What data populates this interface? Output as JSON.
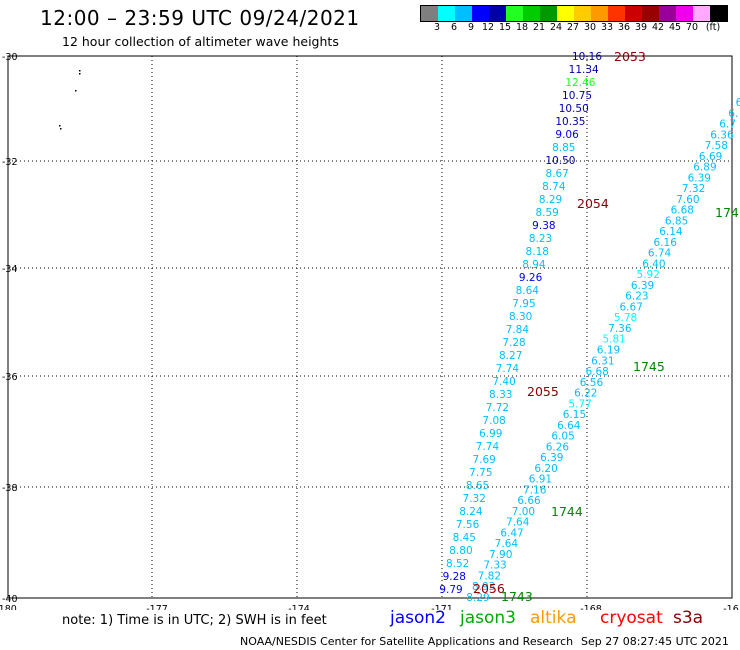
{
  "header": {
    "title": "12:00 – 23:59 UTC 09/24/2021",
    "subtitle": "12 hour collection of altimeter wave heights"
  },
  "colorbar": {
    "colors": [
      "#7f7f7f",
      "#00ffff",
      "#00bfff",
      "#0000ff",
      "#0000aa",
      "#22ff22",
      "#00cc00",
      "#009900",
      "#ffff00",
      "#ffcc00",
      "#ff9900",
      "#ff3300",
      "#cc0000",
      "#990000",
      "#990099",
      "#ee00ee",
      "#ffaaff",
      "#000000"
    ],
    "labels": [
      "3",
      "6",
      "9",
      "12",
      "15",
      "18",
      "21",
      "24",
      "27",
      "30",
      "33",
      "36",
      "39",
      "42",
      "45",
      "70",
      "(ft)"
    ]
  },
  "map": {
    "x_ticks": [
      "-180",
      "-177",
      "-174",
      "-171",
      "-168",
      "-16"
    ],
    "y_ticks": [
      "-30",
      "-32",
      "-34",
      "-36",
      "-38",
      "-40"
    ],
    "west_track": [
      {
        "v": "10.16",
        "c": "#0000aa"
      },
      {
        "v": "11.34",
        "c": "#0000aa"
      },
      {
        "v": "12.46",
        "c": "#22ff22"
      },
      {
        "v": "10.75",
        "c": "#0000aa"
      },
      {
        "v": "10.50",
        "c": "#0000aa"
      },
      {
        "v": "10.35",
        "c": "#0000aa"
      },
      {
        "v": "9.06",
        "c": "#0000ff"
      },
      {
        "v": "8.85",
        "c": "#00bfff"
      },
      {
        "v": "10.50",
        "c": "#0000aa"
      },
      {
        "v": "8.67",
        "c": "#00bfff"
      },
      {
        "v": "8.74",
        "c": "#00bfff"
      },
      {
        "v": "8.29",
        "c": "#00bfff"
      },
      {
        "v": "8.59",
        "c": "#00bfff"
      },
      {
        "v": "9.38",
        "c": "#0000ff"
      },
      {
        "v": "8.23",
        "c": "#00bfff"
      },
      {
        "v": "8.18",
        "c": "#00bfff"
      },
      {
        "v": "8.94",
        "c": "#00bfff"
      },
      {
        "v": "9.26",
        "c": "#0000ff"
      },
      {
        "v": "8.64",
        "c": "#00bfff"
      },
      {
        "v": "7.95",
        "c": "#00bfff"
      },
      {
        "v": "8.30",
        "c": "#00bfff"
      },
      {
        "v": "7.84",
        "c": "#00bfff"
      },
      {
        "v": "7.28",
        "c": "#00bfff"
      },
      {
        "v": "8.27",
        "c": "#00bfff"
      },
      {
        "v": "7.74",
        "c": "#00bfff"
      },
      {
        "v": "7.40",
        "c": "#00bfff"
      },
      {
        "v": "8.33",
        "c": "#00bfff"
      },
      {
        "v": "7.72",
        "c": "#00bfff"
      },
      {
        "v": "7.08",
        "c": "#00bfff"
      },
      {
        "v": "6.99",
        "c": "#00bfff"
      },
      {
        "v": "7.74",
        "c": "#00bfff"
      },
      {
        "v": "7.69",
        "c": "#00bfff"
      },
      {
        "v": "7.75",
        "c": "#00bfff"
      },
      {
        "v": "8.65",
        "c": "#00bfff"
      },
      {
        "v": "7.32",
        "c": "#00bfff"
      },
      {
        "v": "8.24",
        "c": "#00bfff"
      },
      {
        "v": "7.56",
        "c": "#00bfff"
      },
      {
        "v": "8.45",
        "c": "#00bfff"
      },
      {
        "v": "8.80",
        "c": "#00bfff"
      },
      {
        "v": "8.52",
        "c": "#00bfff"
      },
      {
        "v": "9.28",
        "c": "#0000ff"
      },
      {
        "v": "9.79",
        "c": "#0000ff"
      }
    ],
    "east_track": [
      {
        "v": "6",
        "c": "#00bfff"
      },
      {
        "v": "6.",
        "c": "#00bfff"
      },
      {
        "v": "6.7",
        "c": "#00bfff"
      },
      {
        "v": "6.36",
        "c": "#00bfff"
      },
      {
        "v": "7.58",
        "c": "#00bfff"
      },
      {
        "v": "6.69",
        "c": "#00bfff"
      },
      {
        "v": "6.89",
        "c": "#00bfff"
      },
      {
        "v": "6.39",
        "c": "#00bfff"
      },
      {
        "v": "7.32",
        "c": "#00bfff"
      },
      {
        "v": "7.60",
        "c": "#00bfff"
      },
      {
        "v": "6.68",
        "c": "#00bfff"
      },
      {
        "v": "6.85",
        "c": "#00bfff"
      },
      {
        "v": "6.14",
        "c": "#00bfff"
      },
      {
        "v": "6.16",
        "c": "#00bfff"
      },
      {
        "v": "6.74",
        "c": "#00bfff"
      },
      {
        "v": "6.40",
        "c": "#00bfff"
      },
      {
        "v": "5.92",
        "c": "#00ffff"
      },
      {
        "v": "6.39",
        "c": "#00bfff"
      },
      {
        "v": "6.23",
        "c": "#00bfff"
      },
      {
        "v": "6.67",
        "c": "#00bfff"
      },
      {
        "v": "5.78",
        "c": "#00ffff"
      },
      {
        "v": "7.36",
        "c": "#00bfff"
      },
      {
        "v": "5.81",
        "c": "#00ffff"
      },
      {
        "v": "6.19",
        "c": "#00bfff"
      },
      {
        "v": "6.31",
        "c": "#00bfff"
      },
      {
        "v": "6.68",
        "c": "#00bfff"
      },
      {
        "v": "6.56",
        "c": "#00bfff"
      },
      {
        "v": "6.22",
        "c": "#00bfff"
      },
      {
        "v": "5.77",
        "c": "#00ffff"
      },
      {
        "v": "6.15",
        "c": "#00bfff"
      },
      {
        "v": "6.64",
        "c": "#00bfff"
      },
      {
        "v": "6.05",
        "c": "#00bfff"
      },
      {
        "v": "6.26",
        "c": "#00bfff"
      },
      {
        "v": "6.39",
        "c": "#00bfff"
      },
      {
        "v": "6.20",
        "c": "#00bfff"
      },
      {
        "v": "6.91",
        "c": "#00bfff"
      },
      {
        "v": "7.16",
        "c": "#00bfff"
      },
      {
        "v": "6.66",
        "c": "#00bfff"
      },
      {
        "v": "7.00",
        "c": "#00bfff"
      },
      {
        "v": "7.64",
        "c": "#00bfff"
      },
      {
        "v": "6.47",
        "c": "#00bfff"
      },
      {
        "v": "7.64",
        "c": "#00bfff"
      },
      {
        "v": "7.90",
        "c": "#00bfff"
      },
      {
        "v": "7.33",
        "c": "#00bfff"
      },
      {
        "v": "7.82",
        "c": "#00bfff"
      },
      {
        "v": "8.93",
        "c": "#00bfff"
      },
      {
        "v": "8.29",
        "c": "#00bfff"
      }
    ],
    "time_labels": [
      {
        "t": "2053",
        "c": "#880000"
      },
      {
        "t": "2054",
        "c": "#880000"
      },
      {
        "t": "2055",
        "c": "#880000"
      },
      {
        "t": "2056",
        "c": "#880000"
      },
      {
        "t": "174",
        "c": "#008800"
      },
      {
        "t": "1745",
        "c": "#008800"
      },
      {
        "t": "1744",
        "c": "#008800"
      },
      {
        "t": "1743",
        "c": "#008800"
      }
    ]
  },
  "footer": {
    "note": "note:  1) Time is in UTC;  2) SWH is in feet",
    "legend": [
      {
        "name": "jason2",
        "color": "#0000ff"
      },
      {
        "name": "jason3",
        "color": "#00aa00"
      },
      {
        "name": "altika",
        "color": "#ff9900"
      },
      {
        "name": "cryosat",
        "color": "#ff0000"
      },
      {
        "name": "s3a",
        "color": "#880000"
      }
    ],
    "credit": "NOAA/NESDIS Center for Satellite Applications and Research",
    "timestamp": "Sep 27 08:27:45 UTC 2021"
  }
}
